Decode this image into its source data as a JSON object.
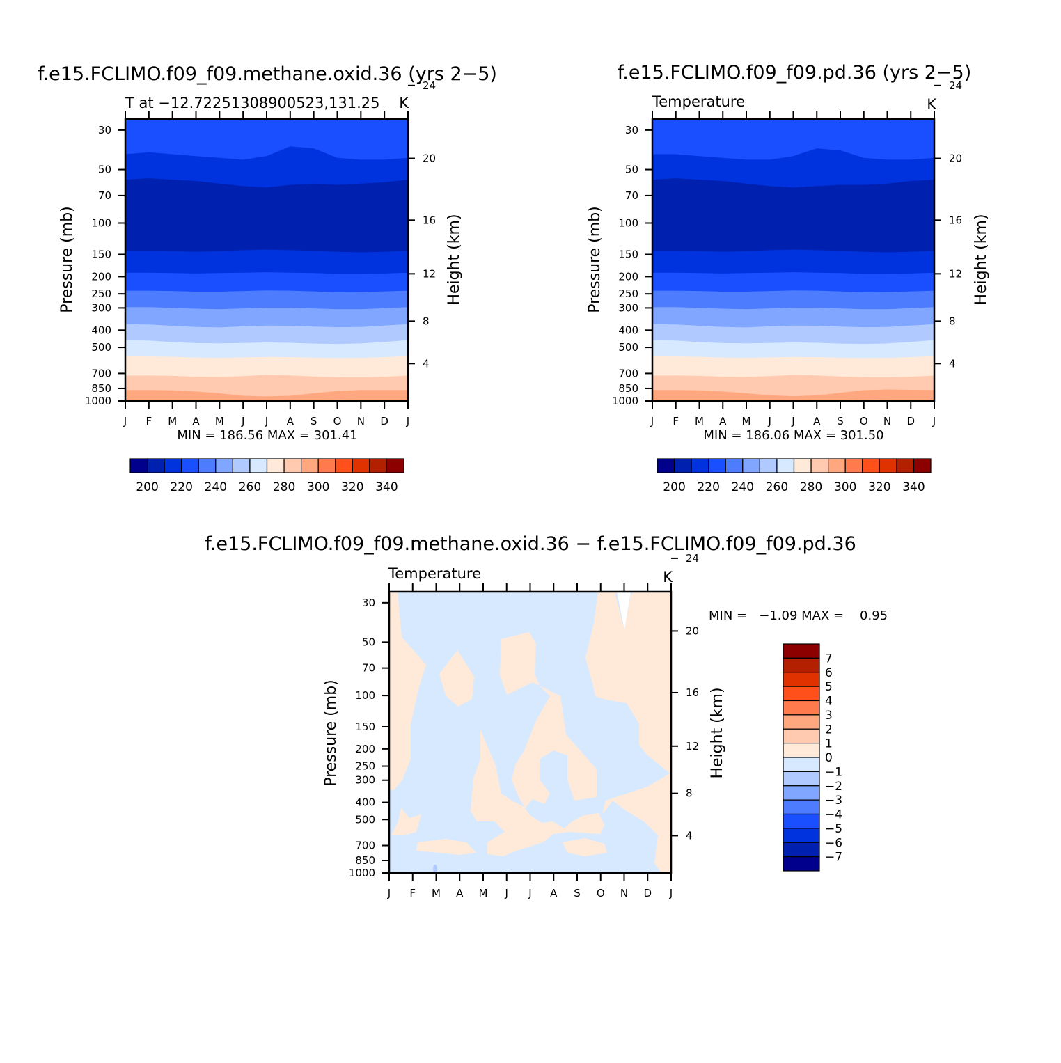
{
  "panels": [
    {
      "title": "f.e15.FCLIMO.f09_f09.methane.oxid.36 (yrs 2−5)",
      "left_label": "T at −12.72251308900523,131.25",
      "right_label": "K",
      "ylabel_left": "Pressure (mb)",
      "ylabel_right": "Height (km)",
      "minmax": "MIN = 186.56 MAX = 301.41"
    },
    {
      "title": "f.e15.FCLIMO.f09_f09.pd.36 (yrs 2−5)",
      "left_label": "Temperature",
      "right_label": "K",
      "ylabel_left": "Pressure (mb)",
      "ylabel_right": "Height (km)",
      "minmax": "MIN = 186.06 MAX = 301.50"
    },
    {
      "title": "f.e15.FCLIMO.f09_f09.methane.oxid.36 − f.e15.FCLIMO.f09_f09.pd.36",
      "left_label": "Temperature",
      "right_label": "K",
      "ylabel_left": "Pressure (mb)",
      "ylabel_right": "Height (km)",
      "minmax": "MIN =   −1.09 MAX =    0.95"
    }
  ],
  "chart_data": [
    {
      "type": "heatmap",
      "subtype": "filled contour (month vs pressure)",
      "x_ticks": [
        "J",
        "F",
        "M",
        "A",
        "M",
        "J",
        "J",
        "A",
        "S",
        "O",
        "N",
        "D",
        "J"
      ],
      "y_ticks_pressure_mb": [
        30,
        50,
        70,
        100,
        150,
        200,
        250,
        300,
        400,
        500,
        700,
        850,
        1000
      ],
      "y_ticks_height_km": [
        24,
        20,
        16,
        12,
        8,
        4
      ],
      "levels_K": [
        190,
        200,
        210,
        220,
        230,
        240,
        250,
        260,
        270,
        280,
        290,
        300,
        310,
        320,
        330,
        340
      ],
      "boundary_pressures_mb": [
        {
          "level": 210,
          "p": [
            41,
            40,
            41,
            42,
            43,
            44,
            42,
            37,
            38,
            43,
            44,
            44,
            43
          ]
        },
        {
          "level": 200,
          "p": [
            57,
            56,
            57,
            58,
            60,
            62,
            63,
            61,
            60,
            61,
            60,
            59,
            57
          ]
        },
        {
          "level": 210,
          "p": [
            143,
            143,
            144,
            145,
            144,
            142,
            141,
            142,
            143,
            145,
            146,
            145,
            143
          ]
        },
        {
          "level": 220,
          "p": [
            190,
            190,
            191,
            192,
            191,
            190,
            189,
            190,
            191,
            193,
            193,
            192,
            190
          ]
        },
        {
          "level": 230,
          "p": [
            240,
            240,
            241,
            243,
            243,
            241,
            239,
            240,
            242,
            245,
            244,
            242,
            240
          ]
        },
        {
          "level": 240,
          "p": [
            297,
            297,
            300,
            303,
            305,
            302,
            299,
            299,
            302,
            305,
            305,
            301,
            297
          ]
        },
        {
          "level": 250,
          "p": [
            370,
            372,
            378,
            384,
            386,
            381,
            377,
            378,
            382,
            385,
            384,
            377,
            370
          ]
        },
        {
          "level": 260,
          "p": [
            455,
            458,
            467,
            473,
            474,
            472,
            469,
            471,
            476,
            478,
            475,
            466,
            455
          ]
        },
        {
          "level": 270,
          "p": [
            560,
            562,
            565,
            570,
            572,
            569,
            566,
            567,
            571,
            574,
            572,
            567,
            560
          ]
        },
        {
          "level": 280,
          "p": [
            720,
            718,
            722,
            730,
            732,
            724,
            713,
            718,
            728,
            735,
            736,
            730,
            720
          ]
        },
        {
          "level": 290,
          "p": [
            868,
            868,
            872,
            885,
            905,
            935,
            942,
            935,
            905,
            880,
            868,
            868,
            868
          ]
        },
        {
          "level": 300,
          "p": [
            1000,
            1000,
            1000,
            1000,
            1000,
            1000,
            1000,
            1000,
            995,
            985,
            992,
            1000,
            1000
          ]
        }
      ],
      "min": 186.56,
      "max": 301.41,
      "units": "K"
    },
    {
      "type": "heatmap",
      "subtype": "filled contour (month vs pressure)",
      "x_ticks": [
        "J",
        "F",
        "M",
        "A",
        "M",
        "J",
        "J",
        "A",
        "S",
        "O",
        "N",
        "D",
        "J"
      ],
      "y_ticks_pressure_mb": [
        30,
        50,
        70,
        100,
        150,
        200,
        250,
        300,
        400,
        500,
        700,
        850,
        1000
      ],
      "y_ticks_height_km": [
        24,
        20,
        16,
        12,
        8,
        4
      ],
      "levels_K": [
        190,
        200,
        210,
        220,
        230,
        240,
        250,
        260,
        270,
        280,
        290,
        300,
        310,
        320,
        330,
        340
      ],
      "boundary_pressures_mb": [
        {
          "level": 210,
          "p": [
            41,
            41,
            42,
            43,
            44,
            44,
            42,
            38,
            39,
            43,
            44,
            44,
            43
          ]
        },
        {
          "level": 200,
          "p": [
            57,
            56,
            57,
            58,
            60,
            62,
            63,
            62,
            61,
            61,
            60,
            58,
            57
          ]
        },
        {
          "level": 210,
          "p": [
            143,
            143,
            144,
            145,
            144,
            142,
            141,
            142,
            143,
            145,
            146,
            145,
            143
          ]
        },
        {
          "level": 220,
          "p": [
            190,
            190,
            191,
            192,
            191,
            190,
            189,
            190,
            191,
            193,
            193,
            192,
            190
          ]
        },
        {
          "level": 230,
          "p": [
            240,
            240,
            241,
            243,
            243,
            241,
            239,
            240,
            242,
            245,
            244,
            242,
            240
          ]
        },
        {
          "level": 240,
          "p": [
            297,
            297,
            300,
            303,
            305,
            302,
            299,
            299,
            302,
            305,
            305,
            301,
            297
          ]
        },
        {
          "level": 250,
          "p": [
            370,
            372,
            378,
            384,
            386,
            381,
            377,
            378,
            382,
            385,
            384,
            377,
            370
          ]
        },
        {
          "level": 260,
          "p": [
            455,
            458,
            467,
            473,
            474,
            472,
            469,
            471,
            476,
            478,
            475,
            466,
            455
          ]
        },
        {
          "level": 270,
          "p": [
            560,
            562,
            565,
            570,
            572,
            569,
            566,
            567,
            571,
            574,
            572,
            567,
            560
          ]
        },
        {
          "level": 280,
          "p": [
            720,
            718,
            722,
            730,
            732,
            724,
            713,
            718,
            728,
            735,
            736,
            730,
            720
          ]
        },
        {
          "level": 290,
          "p": [
            868,
            868,
            872,
            885,
            905,
            930,
            940,
            930,
            900,
            870,
            862,
            866,
            868
          ]
        },
        {
          "level": 300,
          "p": [
            1000,
            1000,
            1000,
            1000,
            1000,
            1000,
            1000,
            1000,
            993,
            982,
            990,
            1000,
            1000
          ]
        }
      ],
      "min": 186.06,
      "max": 301.5,
      "units": "K"
    },
    {
      "type": "heatmap",
      "subtype": "filled contour difference (month vs pressure)",
      "x_ticks": [
        "J",
        "F",
        "M",
        "A",
        "M",
        "J",
        "J",
        "A",
        "S",
        "O",
        "N",
        "D",
        "J"
      ],
      "y_ticks_pressure_mb": [
        30,
        50,
        70,
        100,
        150,
        200,
        250,
        300,
        400,
        500,
        700,
        850,
        1000
      ],
      "y_ticks_height_km": [
        24,
        20,
        16,
        12,
        8,
        4
      ],
      "levels_K": [
        -7,
        -6,
        -5,
        -4,
        -3,
        -2,
        -1,
        0,
        1,
        2,
        3,
        4,
        5,
        6,
        7
      ],
      "dominant_intervals": [
        "-1 to 0",
        "0 to 1"
      ],
      "min": -1.09,
      "max": 0.95,
      "units": "K"
    }
  ],
  "colorbars": {
    "temp_labels": [
      "200",
      "220",
      "240",
      "260",
      "280",
      "300",
      "320",
      "340"
    ],
    "temp_colors": [
      "#00008c",
      "#0020b0",
      "#0033dd",
      "#1a4fff",
      "#4d7cff",
      "#80a6ff",
      "#b0c9ff",
      "#d6e9ff",
      "#ffeada",
      "#ffcab0",
      "#ffa880",
      "#ff7a4d",
      "#ff4f1a",
      "#e03200",
      "#b32000",
      "#8c0000"
    ],
    "diff_labels": [
      "7",
      "6",
      "5",
      "4",
      "3",
      "2",
      "1",
      "0",
      "−1",
      "−2",
      "−3",
      "−4",
      "−5",
      "−6",
      "−7"
    ],
    "diff_colors_top_to_bottom": [
      "#8c0000",
      "#b32000",
      "#e03200",
      "#ff4f1a",
      "#ff7a4d",
      "#ffa880",
      "#ffcab0",
      "#ffeada",
      "#d6e9ff",
      "#b0c9ff",
      "#80a6ff",
      "#4d7cff",
      "#1a4fff",
      "#0033dd",
      "#0020b0",
      "#00008c"
    ]
  }
}
